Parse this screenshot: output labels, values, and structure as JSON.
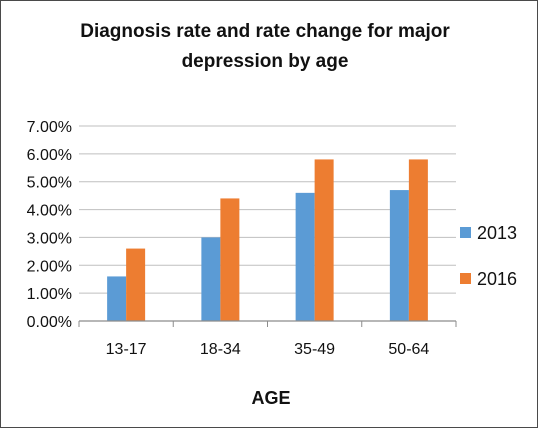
{
  "chart_data": {
    "type": "bar",
    "title_lines": [
      "Diagnosis rate and rate change for major",
      "depression by age"
    ],
    "xlabel": "AGE",
    "ylabel": "",
    "categories": [
      "13-17",
      "18-34",
      "35-49",
      "50-64"
    ],
    "series": [
      {
        "name": "2013",
        "values": [
          1.6,
          3.0,
          4.6,
          4.7
        ],
        "color": "#5b9bd5"
      },
      {
        "name": "2016",
        "values": [
          2.6,
          4.4,
          5.8,
          5.8
        ],
        "color": "#ed7d31"
      }
    ],
    "ylim": [
      0,
      7
    ],
    "yticks": [
      "0.00%",
      "1.00%",
      "2.00%",
      "3.00%",
      "4.00%",
      "5.00%",
      "6.00%",
      "7.00%"
    ],
    "grid": true,
    "legend_position": "right"
  }
}
